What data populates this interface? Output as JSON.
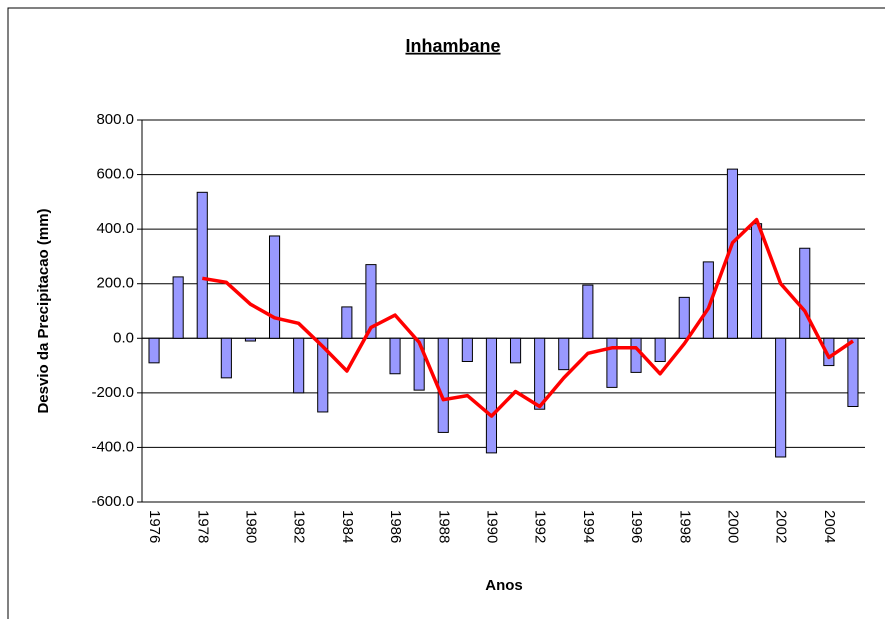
{
  "chart_data": {
    "type": "bar",
    "title": "Inhambane",
    "ylabel": "Desvio da Precipitacao (mm)",
    "xlabel": "Anos",
    "categories": [
      "1976",
      null,
      "1978",
      null,
      "1980",
      null,
      "1982",
      null,
      "1984",
      null,
      "1986",
      null,
      "1988",
      null,
      "1990",
      null,
      "1992",
      null,
      "1994",
      null,
      "1996",
      null,
      "1998",
      null,
      "2000",
      null,
      "2002",
      null,
      "2004",
      null
    ],
    "series": [
      {
        "type": "bar",
        "color": "#9999ff",
        "values": [
          -90,
          225,
          535,
          -145,
          -10,
          375,
          -200,
          -270,
          115,
          270,
          -130,
          -190,
          -345,
          -85,
          -420,
          -90,
          -260,
          -115,
          195,
          -180,
          -125,
          -85,
          150,
          280,
          620,
          420,
          -435,
          330,
          -100,
          -250
        ]
      },
      {
        "type": "line",
        "color": "#ff0000",
        "values": [
          null,
          null,
          220,
          205,
          125,
          75,
          55,
          -30,
          -120,
          40,
          85,
          -15,
          -225,
          -210,
          -285,
          -195,
          -250,
          -145,
          -55,
          -35,
          -35,
          -130,
          -20,
          110,
          350,
          435,
          200,
          100,
          -70,
          -10
        ]
      }
    ],
    "ylim": [
      -600,
      800
    ],
    "yticks": [
      {
        "value": -600,
        "label": "-600.0"
      },
      {
        "value": -400,
        "label": "-400.0"
      },
      {
        "value": -200,
        "label": "-200.0"
      },
      {
        "value": 0,
        "label": "0.0"
      },
      {
        "value": 200,
        "label": "200.0"
      },
      {
        "value": 400,
        "label": "400.0"
      },
      {
        "value": 600,
        "label": "600.0"
      },
      {
        "value": 800,
        "label": "800.0"
      }
    ],
    "grid": true
  }
}
